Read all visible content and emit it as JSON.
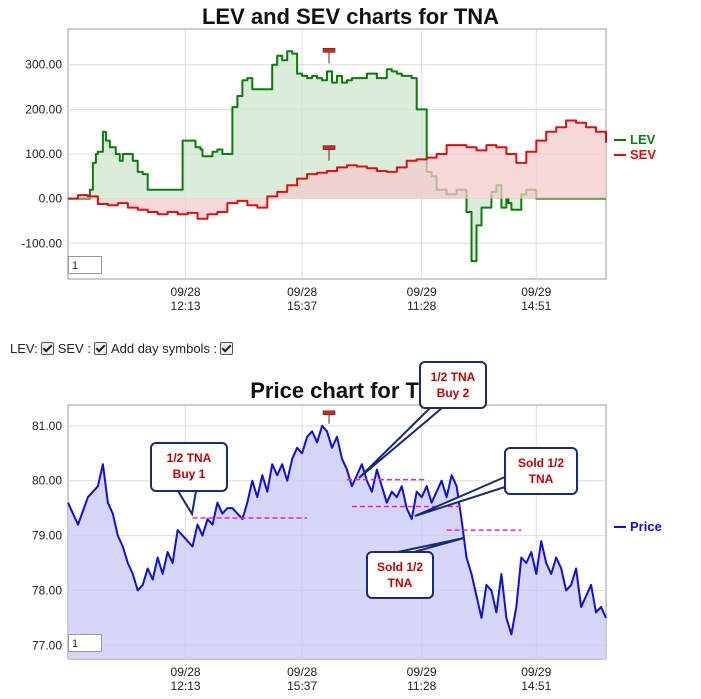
{
  "chart_data": [
    {
      "type": "line",
      "title": "LEV and SEV charts for TNA",
      "x_ticks": [
        {
          "date": "09/28",
          "time": "12:13"
        },
        {
          "date": "09/28",
          "time": "15:37"
        },
        {
          "date": "09/29",
          "time": "11:28"
        },
        {
          "date": "09/29",
          "time": "14:51"
        }
      ],
      "y_ticks": [
        "300.00",
        "200.00",
        "100.00",
        "0.00",
        "-100.00"
      ],
      "ylim": [
        -180,
        380
      ],
      "grid": true,
      "legend_position": "right",
      "zoom_value": "1",
      "series": [
        {
          "name": "LEV",
          "color": "#0a7d0a",
          "fill": "#cfe6cf",
          "x": [
            0,
            8,
            15,
            22,
            25,
            28,
            30,
            35,
            38,
            42,
            48,
            52,
            55,
            60,
            65,
            70,
            75,
            80,
            85,
            90,
            95,
            100,
            110,
            115,
            118,
            122,
            128,
            133,
            135,
            140,
            145,
            150,
            155,
            160,
            165,
            170,
            175,
            180,
            185,
            190,
            195,
            200,
            205,
            210,
            215,
            220,
            225,
            230,
            235,
            240,
            245,
            250,
            255,
            260,
            265,
            270,
            275,
            280,
            285,
            290,
            300,
            305,
            310,
            320,
            325,
            330,
            335,
            340,
            345,
            350,
            360,
            365,
            370,
            375,
            380,
            385,
            390,
            395,
            400,
            405,
            410,
            415,
            420,
            425,
            430,
            435,
            440,
            442,
            445,
            450,
            455,
            460,
            465,
            470,
            475,
            480,
            485,
            490,
            500,
            505,
            510,
            515,
            520,
            525,
            530,
            535,
            540
          ],
          "values": [
            0,
            0,
            0,
            20,
            80,
            100,
            105,
            150,
            130,
            115,
            100,
            85,
            100,
            100,
            85,
            60,
            55,
            20,
            20,
            20,
            20,
            20,
            20,
            130,
            130,
            130,
            115,
            110,
            95,
            95,
            105,
            110,
            100,
            100,
            205,
            230,
            265,
            270,
            245,
            245,
            245,
            245,
            300,
            320,
            310,
            330,
            325,
            280,
            275,
            270,
            275,
            270,
            265,
            285,
            260,
            275,
            260,
            265,
            270,
            270,
            280,
            280,
            270,
            290,
            285,
            280,
            275,
            275,
            270,
            200,
            60,
            50,
            20,
            20,
            10,
            10,
            20,
            20,
            -30,
            -140,
            -60,
            -20,
            -20,
            15,
            30,
            -20,
            0,
            -10,
            -25,
            -25,
            10,
            20,
            20,
            0,
            0,
            0,
            0,
            0,
            0,
            0,
            0,
            0,
            0,
            0,
            0,
            0,
            0
          ]
        },
        {
          "name": "SEV",
          "color": "#e01010",
          "fill": "#f4cccc",
          "x": [
            0,
            10,
            20,
            30,
            40,
            50,
            60,
            70,
            80,
            90,
            100,
            110,
            120,
            130,
            140,
            150,
            160,
            170,
            180,
            190,
            200,
            210,
            220,
            230,
            240,
            250,
            260,
            270,
            280,
            290,
            300,
            310,
            320,
            330,
            340,
            350,
            360,
            370,
            380,
            390,
            400,
            410,
            420,
            430,
            440,
            450,
            460,
            470,
            480,
            490,
            500,
            510,
            520,
            530,
            540
          ],
          "values": [
            0,
            8,
            5,
            -12,
            -15,
            -10,
            -20,
            -25,
            -30,
            -35,
            -30,
            -35,
            -32,
            -45,
            -35,
            -30,
            -10,
            -5,
            -15,
            -20,
            5,
            15,
            30,
            45,
            55,
            58,
            62,
            70,
            75,
            72,
            68,
            62,
            60,
            70,
            85,
            88,
            92,
            100,
            120,
            120,
            115,
            108,
            120,
            115,
            100,
            80,
            105,
            130,
            150,
            160,
            175,
            170,
            160,
            150,
            125
          ]
        }
      ]
    },
    {
      "type": "area",
      "title": "Price chart for TNA",
      "x_ticks": [
        {
          "date": "09/28",
          "time": "12:13"
        },
        {
          "date": "09/28",
          "time": "15:37"
        },
        {
          "date": "09/29",
          "time": "11:28"
        },
        {
          "date": "09/29",
          "time": "14:51"
        }
      ],
      "y_ticks": [
        "81.00",
        "80.00",
        "79.00",
        "78.00",
        "77.00"
      ],
      "ylim": [
        76.75,
        81.38
      ],
      "grid": true,
      "legend_position": "right",
      "zoom_value": "1",
      "series": [
        {
          "name": "Price",
          "color": "#1010dd",
          "fill": "#c8c8f4",
          "x": [
            0,
            10,
            20,
            30,
            35,
            40,
            45,
            50,
            55,
            60,
            65,
            70,
            75,
            80,
            85,
            90,
            95,
            100,
            105,
            110,
            115,
            120,
            125,
            130,
            135,
            140,
            145,
            150,
            155,
            160,
            165,
            170,
            175,
            180,
            185,
            190,
            195,
            200,
            205,
            210,
            215,
            220,
            225,
            230,
            235,
            240,
            245,
            250,
            255,
            260,
            265,
            270,
            275,
            280,
            285,
            290,
            295,
            300,
            305,
            310,
            315,
            320,
            325,
            330,
            335,
            340,
            345,
            350,
            355,
            360,
            365,
            370,
            375,
            380,
            385,
            390,
            395,
            400,
            405,
            410,
            415,
            420,
            425,
            430,
            435,
            440,
            445,
            450,
            455,
            460,
            465,
            470,
            475,
            480,
            485,
            490,
            495,
            500,
            505,
            510,
            515,
            520,
            525,
            530,
            535,
            540
          ],
          "values": [
            79.6,
            79.2,
            79.7,
            79.9,
            80.3,
            79.6,
            79.4,
            79.0,
            78.8,
            78.5,
            78.3,
            78.0,
            78.1,
            78.4,
            78.2,
            78.6,
            78.3,
            78.7,
            78.5,
            79.1,
            79.0,
            78.9,
            78.8,
            79.2,
            79.0,
            79.3,
            79.2,
            79.6,
            79.4,
            79.5,
            79.5,
            79.4,
            79.3,
            79.6,
            80.0,
            79.7,
            80.1,
            79.8,
            80.3,
            80.1,
            80.3,
            80.0,
            80.4,
            80.6,
            80.5,
            80.8,
            80.9,
            80.7,
            81.0,
            80.9,
            80.6,
            80.8,
            80.4,
            80.2,
            79.9,
            80.1,
            80.3,
            80.0,
            79.8,
            80.2,
            79.9,
            79.6,
            79.8,
            79.7,
            79.9,
            79.5,
            79.3,
            79.8,
            79.7,
            79.9,
            79.6,
            79.8,
            80.0,
            79.7,
            80.1,
            79.9,
            79.3,
            78.6,
            78.3,
            77.9,
            77.5,
            78.1,
            78.0,
            77.6,
            78.3,
            77.5,
            77.2,
            77.7,
            78.6,
            78.5,
            78.7,
            78.3,
            78.9,
            78.5,
            78.3,
            78.6,
            78.4,
            78.0,
            78.1,
            78.4,
            77.7,
            77.9,
            78.1,
            77.6,
            77.7,
            77.5
          ]
        }
      ],
      "annotations": [
        {
          "lines": [
            "1/2 TNA",
            "Buy 1"
          ],
          "color": "#cc0000"
        },
        {
          "lines": [
            "1/2 TNA",
            "Buy 2"
          ],
          "color": "#cc0000"
        },
        {
          "lines": [
            "Sold 1/2",
            "TNA"
          ],
          "color": "#cc0000"
        },
        {
          "lines": [
            "Sold 1/2",
            "TNA"
          ],
          "color": "#cc0000"
        }
      ]
    }
  ],
  "controls": {
    "lev_label": "LEV:",
    "sev_label": "SEV :",
    "day_symbols_label": "Add day symbols :"
  }
}
